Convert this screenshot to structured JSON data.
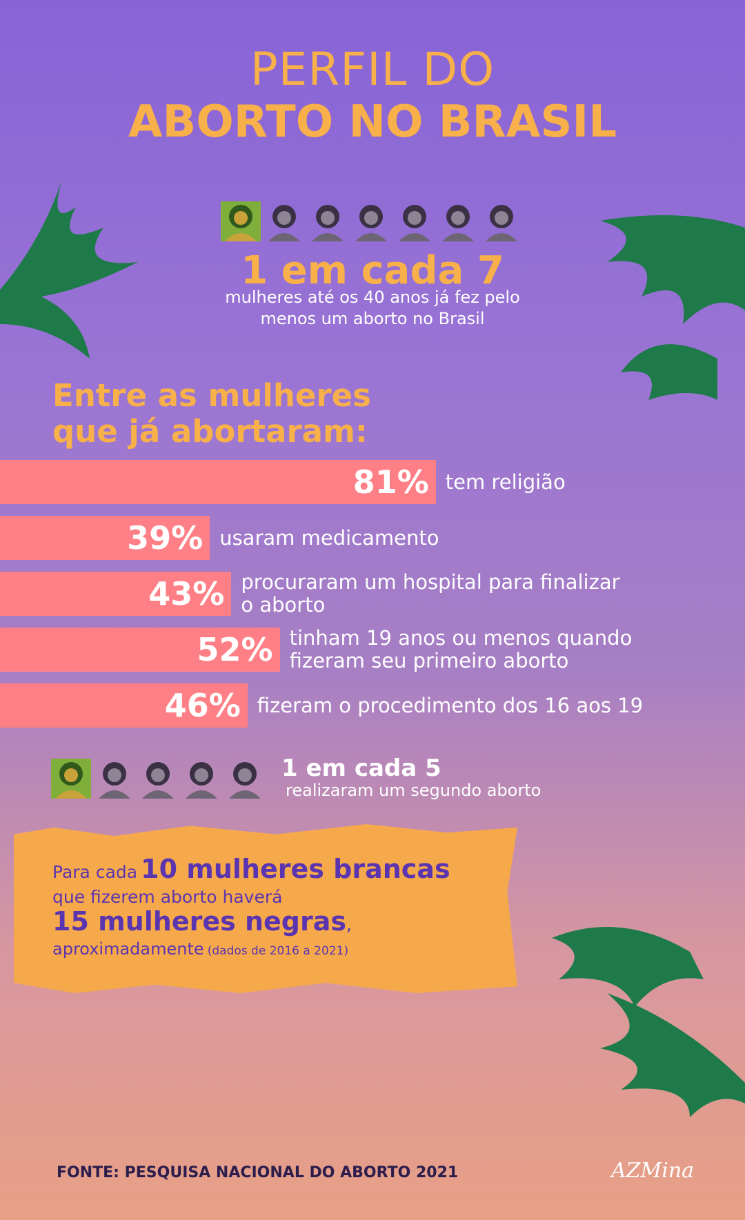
{
  "title_line1": "PERFIL DO",
  "title_line2": "ABORTO NO BRASIL",
  "stat_main": "1 em cada 7",
  "stat_main_text": "mulheres até os 40 anos já fez pelo menos um aborto no Brasil",
  "heading": "Entre as mulheres que já abortaram:",
  "chart_data": {
    "type": "bar",
    "color": "#ff7f86",
    "categories": [
      "tem religião",
      "usaram medicamento",
      "procuraram um hospital para finalizar o aborto",
      "tinham 19 anos ou menos quando fizeram seu primeiro aborto",
      "fizeram o procedimento dos 16 aos 19"
    ],
    "values": [
      81,
      39,
      43,
      52,
      46
    ],
    "value_labels": [
      "81%",
      "39%",
      "43%",
      "52%",
      "46%"
    ]
  },
  "stat_second": "1 em cada 5",
  "stat_second_text": "realizaram um segundo aborto",
  "callout": {
    "part1": "Para cada",
    "part2": "10 mulheres brancas",
    "part3": "que fizerem aborto haverá",
    "part4": "15 mulheres negras",
    "part5": ",",
    "part6": "aproximadamente",
    "part7": "(dados de 2016 a 2021)"
  },
  "source": "FONTE: PESQUISA NACIONAL DO ABORTO 2021",
  "logo": "AZMina"
}
